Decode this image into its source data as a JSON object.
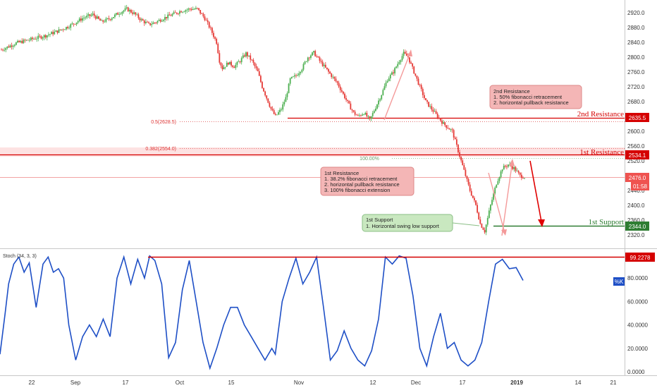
{
  "chart_data": [
    {
      "type": "candlestick",
      "instrument_timeframe": "daily",
      "ylim": [
        2300,
        2960
      ],
      "y_ticks": [
        "2920.0",
        "2880.0",
        "2840.0",
        "2800.0",
        "2760.0",
        "2720.0",
        "2680.0",
        "2640.0",
        "2600.0",
        "2560.0",
        "2520.0",
        "2480.0",
        "2440.0",
        "2400.0",
        "2360.0",
        "2320.0"
      ],
      "x_ticks": [
        "22",
        "Sep",
        "17",
        "Oct",
        "15",
        "Nov",
        "12",
        "Dec",
        "17",
        "2019",
        "14",
        "21"
      ],
      "close_path": [
        [
          0,
          2820
        ],
        [
          10,
          2838
        ],
        [
          20,
          2848
        ],
        [
          30,
          2858
        ],
        [
          38,
          2870
        ],
        [
          45,
          2882
        ],
        [
          50,
          2893
        ],
        [
          55,
          2905
        ],
        [
          62,
          2915
        ],
        [
          68,
          2895
        ],
        [
          74,
          2905
        ],
        [
          80,
          2920
        ],
        [
          85,
          2930
        ],
        [
          90,
          2918
        ],
        [
          95,
          2900
        ],
        [
          100,
          2888
        ],
        [
          105,
          2895
        ],
        [
          110,
          2905
        ],
        [
          116,
          2915
        ],
        [
          122,
          2925
        ],
        [
          128,
          2930
        ],
        [
          133,
          2930
        ],
        [
          138,
          2905
        ],
        [
          142,
          2875
        ],
        [
          146,
          2840
        ],
        [
          148,
          2790
        ],
        [
          150,
          2770
        ],
        [
          154,
          2785
        ],
        [
          158,
          2775
        ],
        [
          162,
          2790
        ],
        [
          166,
          2810
        ],
        [
          170,
          2790
        ],
        [
          174,
          2760
        ],
        [
          177,
          2720
        ],
        [
          180,
          2690
        ],
        [
          183,
          2660
        ],
        [
          186,
          2640
        ],
        [
          190,
          2660
        ],
        [
          193,
          2690
        ],
        [
          196,
          2740
        ],
        [
          200,
          2750
        ],
        [
          204,
          2770
        ],
        [
          208,
          2800
        ],
        [
          212,
          2812
        ],
        [
          216,
          2790
        ],
        [
          220,
          2770
        ],
        [
          224,
          2750
        ],
        [
          228,
          2730
        ],
        [
          232,
          2700
        ],
        [
          236,
          2670
        ],
        [
          239,
          2650
        ],
        [
          242,
          2640
        ],
        [
          246,
          2650
        ],
        [
          250,
          2630
        ],
        [
          254,
          2665
        ],
        [
          258,
          2700
        ],
        [
          262,
          2740
        ],
        [
          266,
          2760
        ],
        [
          270,
          2790
        ],
        [
          273,
          2810
        ],
        [
          276,
          2800
        ],
        [
          280,
          2760
        ],
        [
          284,
          2720
        ],
        [
          288,
          2680
        ],
        [
          292,
          2660
        ],
        [
          296,
          2640
        ],
        [
          300,
          2620
        ],
        [
          303,
          2610
        ],
        [
          306,
          2600
        ],
        [
          309,
          2560
        ],
        [
          312,
          2520
        ],
        [
          315,
          2480
        ],
        [
          318,
          2440
        ],
        [
          322,
          2400
        ],
        [
          325,
          2350
        ],
        [
          328,
          2330
        ],
        [
          332,
          2400
        ],
        [
          336,
          2460
        ],
        [
          340,
          2500
        ],
        [
          344,
          2510
        ],
        [
          348,
          2500
        ],
        [
          352,
          2480
        ],
        [
          355,
          2476
        ]
      ],
      "stoch": [
        [
          0,
          15
        ],
        [
          3,
          50
        ],
        [
          5,
          75
        ],
        [
          8,
          92
        ],
        [
          11,
          98
        ],
        [
          14,
          85
        ],
        [
          17,
          93
        ],
        [
          21,
          55
        ],
        [
          25,
          92
        ],
        [
          28,
          98
        ],
        [
          31,
          85
        ],
        [
          34,
          88
        ],
        [
          37,
          80
        ],
        [
          40,
          40
        ],
        [
          44,
          10
        ],
        [
          48,
          30
        ],
        [
          52,
          40
        ],
        [
          56,
          30
        ],
        [
          60,
          45
        ],
        [
          64,
          30
        ],
        [
          68,
          80
        ],
        [
          72,
          98
        ],
        [
          76,
          75
        ],
        [
          80,
          96
        ],
        [
          84,
          80
        ],
        [
          87,
          99
        ],
        [
          90,
          95
        ],
        [
          94,
          75
        ],
        [
          98,
          12
        ],
        [
          102,
          25
        ],
        [
          106,
          70
        ],
        [
          110,
          95
        ],
        [
          114,
          60
        ],
        [
          118,
          25
        ],
        [
          122,
          3
        ],
        [
          126,
          20
        ],
        [
          130,
          40
        ],
        [
          134,
          55
        ],
        [
          138,
          55
        ],
        [
          142,
          40
        ],
        [
          146,
          30
        ],
        [
          150,
          20
        ],
        [
          154,
          10
        ],
        [
          158,
          20
        ],
        [
          160,
          15
        ],
        [
          164,
          60
        ],
        [
          168,
          80
        ],
        [
          172,
          97
        ],
        [
          176,
          75
        ],
        [
          180,
          85
        ],
        [
          184,
          98
        ],
        [
          188,
          55
        ],
        [
          192,
          10
        ],
        [
          196,
          18
        ],
        [
          200,
          35
        ],
        [
          204,
          20
        ],
        [
          208,
          10
        ],
        [
          212,
          5
        ],
        [
          216,
          18
        ],
        [
          220,
          45
        ],
        [
          224,
          98
        ],
        [
          228,
          92
        ],
        [
          232,
          99
        ],
        [
          236,
          97
        ],
        [
          240,
          65
        ],
        [
          244,
          20
        ],
        [
          248,
          5
        ],
        [
          252,
          30
        ],
        [
          256,
          50
        ],
        [
          260,
          20
        ],
        [
          264,
          25
        ],
        [
          268,
          10
        ],
        [
          272,
          5
        ],
        [
          276,
          10
        ],
        [
          280,
          25
        ],
        [
          284,
          60
        ],
        [
          288,
          92
        ],
        [
          292,
          96
        ],
        [
          296,
          88
        ],
        [
          300,
          89
        ],
        [
          304,
          78
        ]
      ]
    }
  ],
  "levels": {
    "second_resistance": {
      "label": "2nd Resistance",
      "value": "2635.5",
      "fib_label": "0.5(2628.5)",
      "note_title": "2nd Resistance",
      "note_1": "1. 50% fibonacci retracement",
      "note_2": "2. horizontal pullback resistance"
    },
    "first_resistance": {
      "label": "1st Resistance",
      "value": "2534.1",
      "fib_label": "0.382(2554.0)",
      "ext_label": "100.00%",
      "note_title": "1st Resistance",
      "note_1": "1. 38.2% fibonacci retracement",
      "note_2": "2. horizontal pullback resistance",
      "note_3": "3. 100% fibonacci extension"
    },
    "first_support": {
      "label": "1st Support",
      "value": "2344.0",
      "note_title": "1st Support",
      "note_1": "1. Horizontal swing low support"
    }
  },
  "price_tag": {
    "price": "2476.0",
    "countdown": "01:58"
  },
  "stochastic": {
    "title": "Stoch (34, 3, 3)",
    "marker_label": "%K",
    "level_tag": "99.2278",
    "y_ticks": [
      "80.0000",
      "60.0000",
      "40.0000",
      "20.0000",
      "0.0000"
    ]
  },
  "colors": {
    "up": "#4caf50",
    "down": "#e53935",
    "resistance": "#d50000",
    "support": "#2e7d32",
    "stoch": "#1e4fc6",
    "fib": "#e57373"
  }
}
